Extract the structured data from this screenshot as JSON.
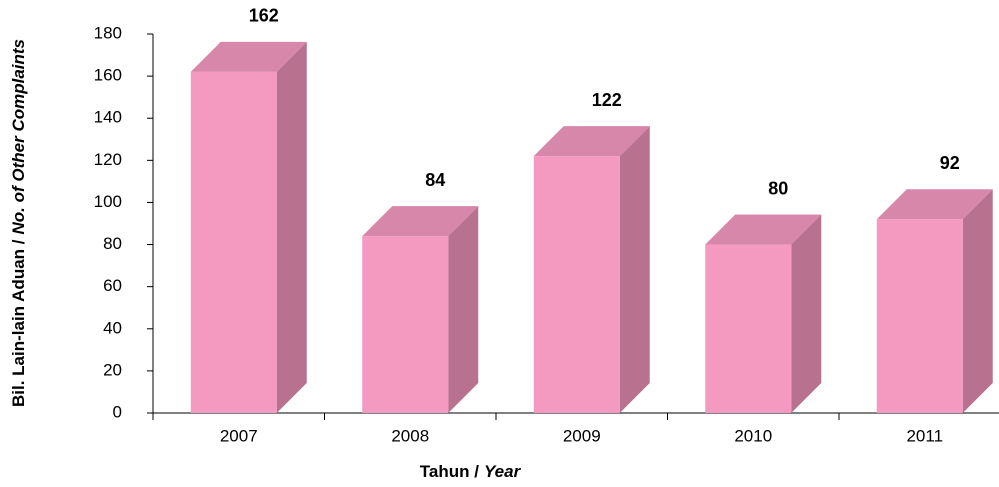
{
  "chart_data": {
    "type": "bar3d",
    "ylabel": [
      "Bil. Lain-lain Aduan /",
      "No. of Other Complaints"
    ],
    "xlabel": [
      "Tahun /",
      "Year"
    ],
    "categories": [
      "2007",
      "2008",
      "2009",
      "2010",
      "2011"
    ],
    "values": [
      162,
      84,
      122,
      80,
      92
    ],
    "color": "#f49ac1",
    "ylim": [
      0,
      180
    ],
    "yticks": [
      0,
      20,
      40,
      60,
      80,
      100,
      120,
      140,
      160,
      180
    ]
  }
}
